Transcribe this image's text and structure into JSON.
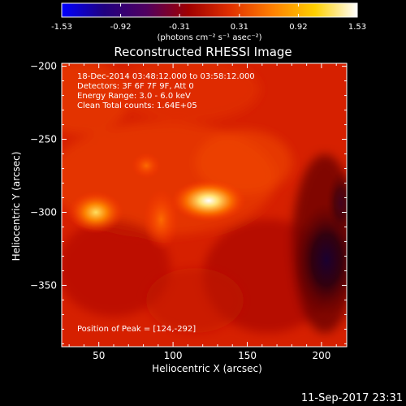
{
  "colorbar": {
    "ticks": [
      "-1.53",
      "-0.92",
      "-0.31",
      "0.31",
      "0.92",
      "1.53"
    ],
    "tick_values": [
      -1.53,
      -0.92,
      -0.31,
      0.31,
      0.92,
      1.53
    ],
    "range": [
      -1.53,
      1.53
    ],
    "unit_label": "(photons cm⁻² s⁻¹ asec⁻²)"
  },
  "chart_data": {
    "type": "heatmap",
    "title": "Reconstructed RHESSI Image",
    "xlabel": "Heliocentric X (arcsec)",
    "ylabel": "Heliocentric Y (arcsec)",
    "xlim": [
      25,
      217
    ],
    "ylim": [
      -392,
      -198
    ],
    "x_ticks": [
      50,
      100,
      150,
      200
    ],
    "y_ticks": [
      -200,
      -250,
      -300,
      -350
    ],
    "annotations": [
      "18-Dec-2014 03:48:12.000 to 03:58:12.000",
      "Detectors: 3F 6F 7F 9F, Att 0",
      "Energy Range: 3.0 - 6.0 keV",
      "Clean    Total counts: 1.64E+05"
    ],
    "peak_label": "Position of Peak = [124,-292]",
    "peak": [
      124,
      -292
    ],
    "sources": [
      {
        "x": 124,
        "y": -292,
        "level": 1.0
      },
      {
        "x": 48,
        "y": -300,
        "level": 0.85
      },
      {
        "x": 92,
        "y": -305,
        "level": 0.55
      },
      {
        "x": 82,
        "y": -268,
        "level": 0.45
      }
    ],
    "colormap_stops": [
      "#0000ff",
      "#200080",
      "#500060",
      "#a00000",
      "#e03000",
      "#ff8000",
      "#ffd000",
      "#ffffff"
    ]
  },
  "footer": {
    "date": "11-Sep-2017 23:31"
  }
}
